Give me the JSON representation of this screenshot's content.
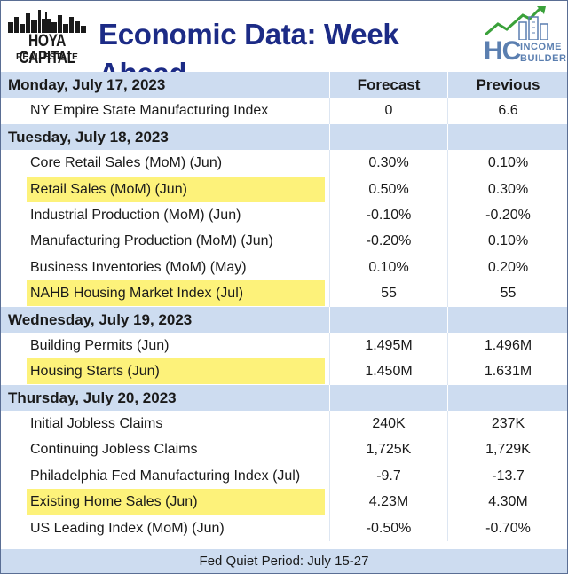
{
  "header": {
    "logo_left_line1": "HOYA CAPITAL",
    "logo_left_line2": "REAL ESTATE",
    "title": "Economic Data: Week Ahead",
    "logo_right_hc": "HC",
    "logo_right_line1": "INCOME",
    "logo_right_line2": "BUILDER"
  },
  "columns": {
    "forecast": "Forecast",
    "previous": "Previous"
  },
  "sections": [
    {
      "day": "Monday, July 17, 2023",
      "items": [
        {
          "name": "NY Empire State Manufacturing Index",
          "forecast": "0",
          "previous": "6.6",
          "highlight": false
        }
      ]
    },
    {
      "day": "Tuesday, July 18, 2023",
      "items": [
        {
          "name": "Core Retail Sales (MoM) (Jun)",
          "forecast": "0.30%",
          "previous": "0.10%",
          "highlight": false
        },
        {
          "name": "Retail Sales (MoM) (Jun)",
          "forecast": "0.50%",
          "previous": "0.30%",
          "highlight": true
        },
        {
          "name": "Industrial Production (MoM) (Jun)",
          "forecast": "-0.10%",
          "previous": "-0.20%",
          "highlight": false
        },
        {
          "name": "Manufacturing Production (MoM) (Jun)",
          "forecast": "-0.20%",
          "previous": "0.10%",
          "highlight": false
        },
        {
          "name": "Business Inventories (MoM) (May)",
          "forecast": "0.10%",
          "previous": "0.20%",
          "highlight": false
        },
        {
          "name": "NAHB Housing Market Index (Jul)",
          "forecast": "55",
          "previous": "55",
          "highlight": true
        }
      ]
    },
    {
      "day": "Wednesday, July 19, 2023",
      "items": [
        {
          "name": "Building Permits (Jun)",
          "forecast": "1.495M",
          "previous": "1.496M",
          "highlight": false
        },
        {
          "name": "Housing Starts (Jun)",
          "forecast": "1.450M",
          "previous": "1.631M",
          "highlight": true
        }
      ]
    },
    {
      "day": "Thursday, July 20, 2023",
      "items": [
        {
          "name": "Initial Jobless Claims",
          "forecast": "240K",
          "previous": "237K",
          "highlight": false
        },
        {
          "name": "Continuing Jobless Claims",
          "forecast": "1,725K",
          "previous": "1,729K",
          "highlight": false
        },
        {
          "name": "Philadelphia Fed Manufacturing Index (Jul)",
          "forecast": "-9.7",
          "previous": "-13.7",
          "highlight": false
        },
        {
          "name": "Existing Home Sales (Jun)",
          "forecast": "4.23M",
          "previous": "4.30M",
          "highlight": true
        },
        {
          "name": "US Leading Index (MoM) (Jun)",
          "forecast": "-0.50%",
          "previous": "-0.70%",
          "highlight": false
        }
      ]
    }
  ],
  "footer": "Fed Quiet Period: July 15-27",
  "colors": {
    "title": "#1c2b86",
    "section_bg": "#cddcf0",
    "highlight": "#fdf27a",
    "brand_right": "#5b7fb0"
  }
}
